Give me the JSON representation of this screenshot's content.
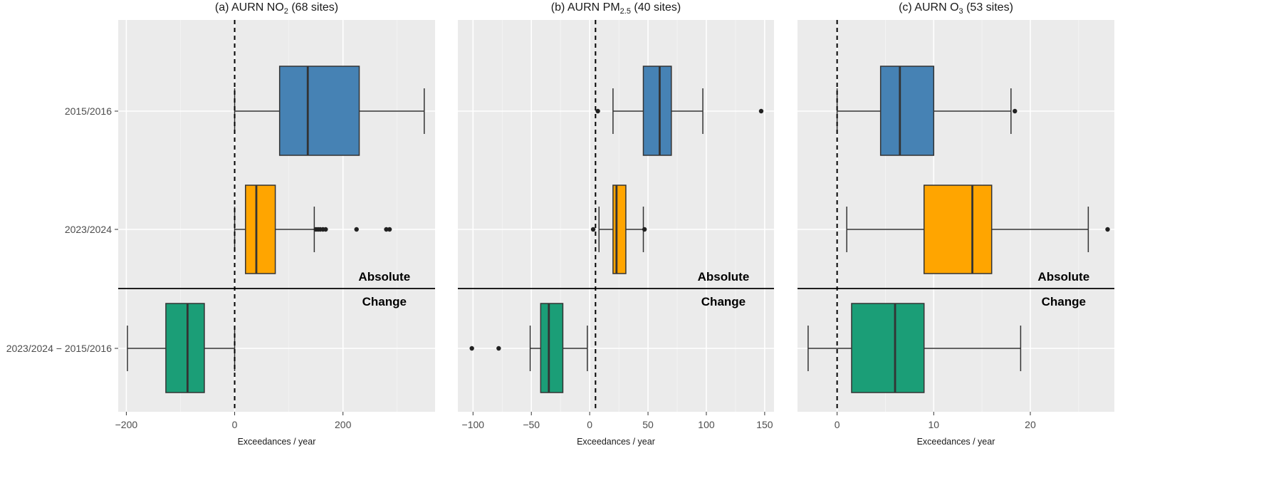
{
  "chart_data": [
    {
      "type": "boxplot",
      "title_parts": [
        "(a) AURN NO",
        "2",
        " (68 sites)"
      ],
      "title_sub_kind": "sub",
      "xlabel": "Exceedances / year",
      "xlim": [
        -215,
        370
      ],
      "xticks": [
        -200,
        0,
        200
      ],
      "xtick_labels": [
        "−200",
        "0",
        "200"
      ],
      "vline": 0,
      "categories": [
        "2015/2016",
        "2023/2024",
        "2023/2024 − 2015/2016"
      ],
      "section_labels": {
        "top": "Absolute",
        "bottom": "Change"
      },
      "boxes": [
        {
          "category": "2015/2016",
          "whisker_low": 0,
          "q1": 83,
          "median": 135,
          "q3": 230,
          "whisker_high": 350,
          "outliers": [],
          "color": "#4682b4"
        },
        {
          "category": "2023/2024",
          "whisker_low": 0,
          "q1": 20,
          "median": 40,
          "q3": 75,
          "whisker_high": 147,
          "outliers": [
            150,
            154,
            158,
            163,
            168,
            225,
            280,
            286
          ],
          "color": "#ffa500"
        },
        {
          "category": "2023/2024 − 2015/2016",
          "whisker_low": -198,
          "q1": -127,
          "median": -87,
          "q3": -56,
          "whisker_high": 0,
          "outliers": [],
          "color": "#1b9e77"
        }
      ]
    },
    {
      "type": "boxplot",
      "title_parts": [
        "(b) AURN PM",
        "2.5",
        " (40 sites)"
      ],
      "title_sub_kind": "sub",
      "xlabel": "Exceedances / year",
      "xlim": [
        -113,
        158
      ],
      "xticks": [
        -100,
        -50,
        0,
        50,
        100,
        150
      ],
      "xtick_labels": [
        "−100",
        "−50",
        "0",
        "50",
        "100",
        "150"
      ],
      "vline": 5,
      "categories": [
        "2015/2016",
        "2023/2024",
        "2023/2024 − 2015/2016"
      ],
      "section_labels": {
        "top": "Absolute",
        "bottom": "Change"
      },
      "boxes": [
        {
          "category": "2015/2016",
          "whisker_low": 20,
          "q1": 46,
          "median": 60,
          "q3": 70,
          "whisker_high": 97,
          "outliers": [
            7,
            147
          ],
          "color": "#4682b4"
        },
        {
          "category": "2023/2024",
          "whisker_low": 8,
          "q1": 20,
          "median": 23,
          "q3": 31,
          "whisker_high": 46,
          "outliers": [
            3,
            47
          ],
          "color": "#ffa500"
        },
        {
          "category": "2023/2024 − 2015/2016",
          "whisker_low": -51,
          "q1": -42,
          "median": -35,
          "q3": -23,
          "whisker_high": -2,
          "outliers": [
            -101,
            -78
          ],
          "color": "#1b9e77"
        }
      ]
    },
    {
      "type": "boxplot",
      "title_parts": [
        "(c) AURN O",
        "3",
        " (53 sites)"
      ],
      "title_sub_kind": "sub",
      "xlabel": "Exceedances / year",
      "xlim": [
        -4.1,
        28.7
      ],
      "xticks": [
        0,
        10,
        20
      ],
      "xtick_labels": [
        "0",
        "10",
        "20"
      ],
      "vline": 0,
      "categories": [
        "2015/2016",
        "2023/2024",
        "2023/2024 − 2015/2016"
      ],
      "section_labels": {
        "top": "Absolute",
        "bottom": "Change"
      },
      "boxes": [
        {
          "category": "2015/2016",
          "whisker_low": 0,
          "q1": 4.5,
          "median": 6.5,
          "q3": 10,
          "whisker_high": 18,
          "outliers": [
            18.4
          ],
          "color": "#4682b4"
        },
        {
          "category": "2023/2024",
          "whisker_low": 1,
          "q1": 9,
          "median": 14,
          "q3": 16,
          "whisker_high": 26,
          "outliers": [
            28
          ],
          "color": "#ffa500"
        },
        {
          "category": "2023/2024 − 2015/2016",
          "whisker_low": -3,
          "q1": 1.5,
          "median": 6,
          "q3": 9,
          "whisker_high": 19,
          "outliers": [],
          "color": "#1b9e77"
        }
      ]
    }
  ]
}
